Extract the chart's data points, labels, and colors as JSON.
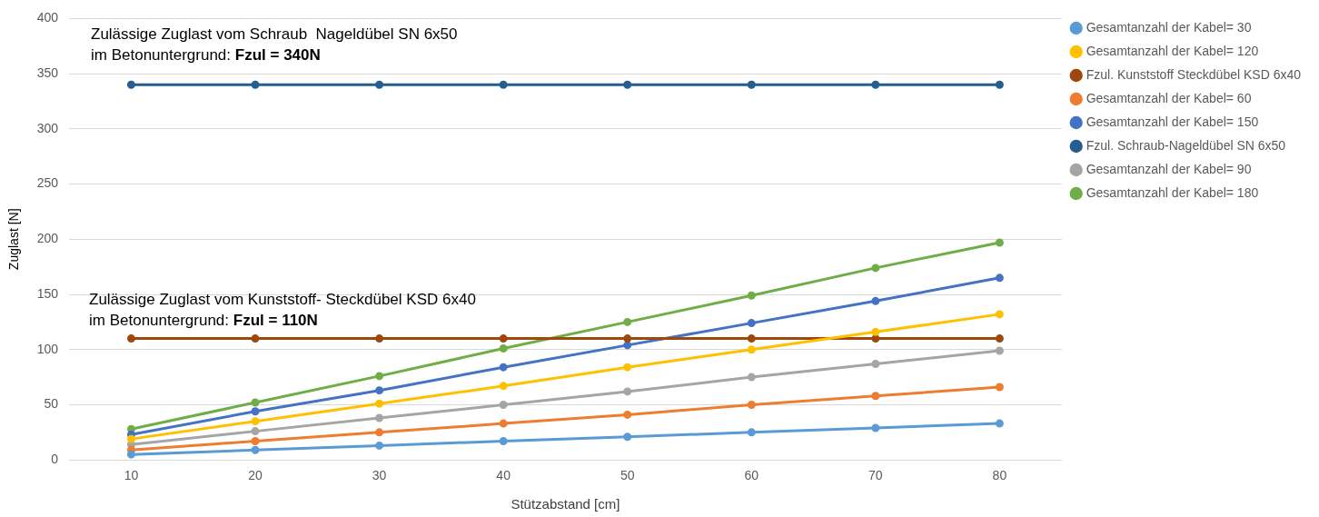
{
  "chart_data": {
    "type": "line",
    "xlabel": "Stützabstand [cm]",
    "ylabel": "Zuglast [N]",
    "categories": [
      "10",
      "20",
      "30",
      "40",
      "50",
      "60",
      "70",
      "80"
    ],
    "ylim": [
      0,
      400
    ],
    "yticks": [
      0,
      50,
      100,
      150,
      200,
      250,
      300,
      350,
      400
    ],
    "grid": "y",
    "legend": "right",
    "marker": "circle",
    "annotations": [
      "Zulässige Zuglast vom Schraub  Nageldübel SN 6x50\nim Betonuntergrund: **Fzul = 340N**",
      "Zulässige Zuglast vom Kunststoff- Steckdübel KSD 6x40\nim Betonuntergrund: **Fzul = 110N**"
    ],
    "series": [
      {
        "name": "Gesamtanzahl der Kabel= 30",
        "color": "#5b9bd5",
        "values": [
          5,
          9,
          13,
          17,
          21,
          25,
          29,
          33
        ]
      },
      {
        "name": "Gesamtanzahl der Kabel= 120",
        "color": "#ffc000",
        "values": [
          19,
          35,
          51,
          67,
          84,
          100,
          116,
          132
        ]
      },
      {
        "name": "Fzul. Kunststoff Steckdübel KSD 6x40",
        "color": "#9e480e",
        "values": [
          110,
          110,
          110,
          110,
          110,
          110,
          110,
          110
        ]
      },
      {
        "name": "Gesamtanzahl der Kabel= 60",
        "color": "#ed7d31",
        "values": [
          9,
          17,
          25,
          33,
          41,
          50,
          58,
          66
        ]
      },
      {
        "name": "Gesamtanzahl der Kabel= 150",
        "color": "#4472c4",
        "values": [
          23,
          44,
          63,
          84,
          104,
          124,
          144,
          165
        ]
      },
      {
        "name": "Fzul. Schraub-Nageldübel SN 6x50",
        "color": "#255e91",
        "values": [
          340,
          340,
          340,
          340,
          340,
          340,
          340,
          340
        ]
      },
      {
        "name": "Gesamtanzahl der Kabel= 90",
        "color": "#a5a5a5",
        "values": [
          14,
          26,
          38,
          50,
          62,
          75,
          87,
          99
        ]
      },
      {
        "name": "Gesamtanzahl der Kabel= 180",
        "color": "#70ad47",
        "values": [
          28,
          52,
          76,
          101,
          125,
          149,
          174,
          197
        ]
      }
    ]
  }
}
